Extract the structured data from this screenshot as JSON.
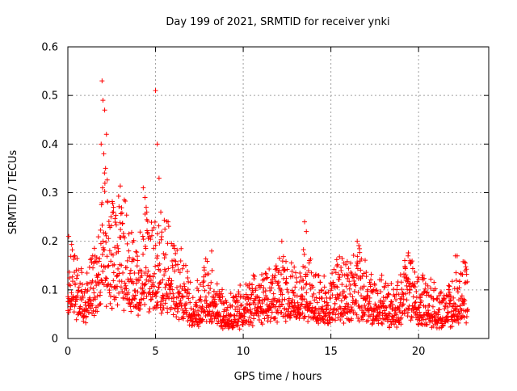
{
  "chart_data": {
    "type": "scatter",
    "title": "Day 199 of 2021, SRMTID for receiver ynki",
    "xlabel": "GPS time / hours",
    "ylabel": "SRMTID / TECUs",
    "xlim": [
      0,
      24
    ],
    "ylim": [
      0,
      0.6
    ],
    "xticks": [
      0,
      5,
      10,
      15,
      20
    ],
    "yticks": [
      0,
      0.1,
      0.2,
      0.3,
      0.4,
      0.5,
      0.6
    ],
    "xtick_labels": [
      "0",
      "5",
      "10",
      "15",
      "20"
    ],
    "ytick_labels": [
      "0",
      "0.1",
      "0.2",
      "0.3",
      "0.4",
      "0.5",
      "0.6"
    ],
    "grid": true,
    "marker": "+",
    "color": "#ff0000",
    "series": [
      {
        "name": "SRMTID",
        "trend": [
          [
            0.0,
            0.14
          ],
          [
            0.5,
            0.1
          ],
          [
            1.0,
            0.07
          ],
          [
            1.5,
            0.11
          ],
          [
            2.0,
            0.19
          ],
          [
            2.5,
            0.16
          ],
          [
            3.0,
            0.17
          ],
          [
            3.5,
            0.13
          ],
          [
            4.0,
            0.12
          ],
          [
            4.5,
            0.15
          ],
          [
            5.0,
            0.13
          ],
          [
            5.5,
            0.14
          ],
          [
            6.0,
            0.12
          ],
          [
            6.5,
            0.1
          ],
          [
            7.0,
            0.07
          ],
          [
            7.5,
            0.07
          ],
          [
            8.0,
            0.09
          ],
          [
            8.5,
            0.06
          ],
          [
            9.0,
            0.05
          ],
          [
            9.5,
            0.05
          ],
          [
            10.0,
            0.06
          ],
          [
            10.5,
            0.07
          ],
          [
            11.0,
            0.08
          ],
          [
            11.5,
            0.09
          ],
          [
            12.0,
            0.09
          ],
          [
            12.5,
            0.09
          ],
          [
            13.0,
            0.08
          ],
          [
            13.5,
            0.1
          ],
          [
            14.0,
            0.08
          ],
          [
            14.5,
            0.07
          ],
          [
            15.0,
            0.08
          ],
          [
            15.5,
            0.09
          ],
          [
            16.0,
            0.09
          ],
          [
            16.5,
            0.1
          ],
          [
            17.0,
            0.09
          ],
          [
            17.5,
            0.07
          ],
          [
            18.0,
            0.07
          ],
          [
            18.5,
            0.06
          ],
          [
            19.0,
            0.07
          ],
          [
            19.5,
            0.1
          ],
          [
            20.0,
            0.07
          ],
          [
            20.5,
            0.07
          ],
          [
            21.0,
            0.06
          ],
          [
            21.5,
            0.05
          ],
          [
            22.0,
            0.07
          ],
          [
            22.5,
            0.08
          ],
          [
            22.8,
            0.09
          ]
        ],
        "peaks": [
          [
            0.05,
            0.21
          ],
          [
            1.95,
            0.53
          ],
          [
            2.0,
            0.49
          ],
          [
            2.1,
            0.47
          ],
          [
            2.2,
            0.42
          ],
          [
            1.9,
            0.4
          ],
          [
            2.05,
            0.38
          ],
          [
            2.15,
            0.35
          ],
          [
            1.98,
            0.31
          ],
          [
            2.6,
            0.27
          ],
          [
            4.3,
            0.31
          ],
          [
            4.4,
            0.29
          ],
          [
            4.5,
            0.26
          ],
          [
            5.0,
            0.51
          ],
          [
            5.1,
            0.4
          ],
          [
            5.2,
            0.33
          ],
          [
            5.3,
            0.26
          ],
          [
            8.2,
            0.18
          ],
          [
            12.2,
            0.2
          ],
          [
            13.5,
            0.24
          ],
          [
            13.6,
            0.22
          ],
          [
            16.5,
            0.2
          ],
          [
            19.4,
            0.17
          ],
          [
            19.5,
            0.16
          ],
          [
            22.1,
            0.17
          ],
          [
            22.2,
            0.17
          ]
        ],
        "count": 1900
      }
    ]
  }
}
